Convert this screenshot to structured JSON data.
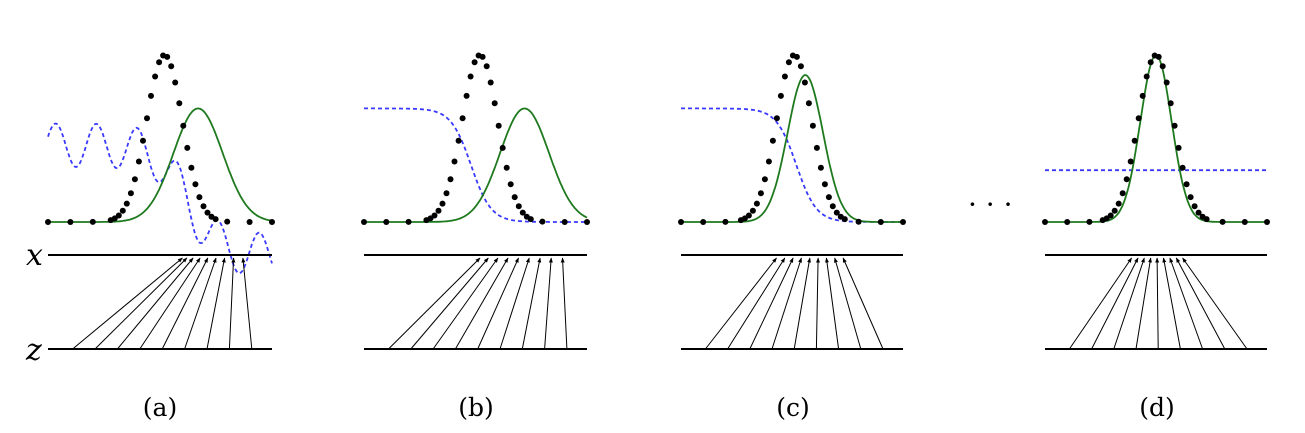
{
  "figure": {
    "axis_x_label": "x",
    "axis_z_label": "z",
    "ellipsis": "· · ·",
    "colors": {
      "data_dots": "#000000",
      "generator_curve": "#1f7a1f",
      "discriminator_curve": "#3a3aff",
      "axes": "#000000"
    },
    "panels": [
      {
        "id": "a",
        "caption": "(a)",
        "generator": {
          "mean": 0.67,
          "width": 0.11,
          "height": 0.68
        },
        "discriminator": {
          "type": "noisy"
        }
      },
      {
        "id": "b",
        "caption": "(b)",
        "generator": {
          "mean": 0.72,
          "width": 0.11,
          "height": 0.68
        },
        "discriminator": {
          "type": "sigmoid",
          "start": 0.68,
          "end": 0.0,
          "center": 0.48
        }
      },
      {
        "id": "c",
        "caption": "(c)",
        "generator": {
          "mean": 0.56,
          "width": 0.08,
          "height": 0.88
        },
        "discriminator": {
          "type": "sigmoid",
          "start": 0.68,
          "end": 0.0,
          "center": 0.52
        }
      },
      {
        "id": "d",
        "caption": "(d)",
        "generator": {
          "mean": 0.5,
          "width": 0.07,
          "height": 1.0
        },
        "discriminator": {
          "type": "flat",
          "level": 0.5
        }
      }
    ]
  }
}
